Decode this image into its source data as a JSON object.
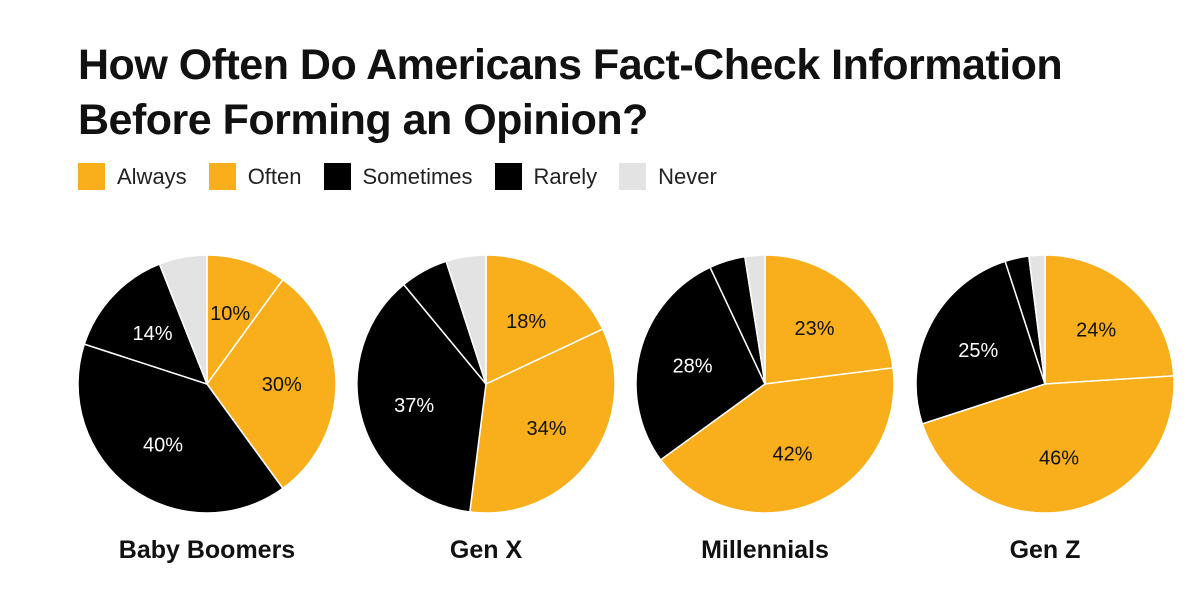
{
  "title_line1": "How Often Do Americans Fact-Check Information",
  "title_line2": "Before Forming an Opinion?",
  "colors": {
    "gold": "#F9AE1B",
    "black": "#000000",
    "light": "#E3E3E3"
  },
  "legend": [
    {
      "label": "Always",
      "color": "#F9AE1B"
    },
    {
      "label": "Often",
      "color": "#F9AE1B"
    },
    {
      "label": "Sometimes",
      "color": "#000000"
    },
    {
      "label": "Rarely",
      "color": "#000000"
    },
    {
      "label": "Never",
      "color": "#E3E3E3"
    }
  ],
  "chart_data": {
    "type": "pie",
    "categories": [
      "Always",
      "Often",
      "Sometimes",
      "Rarely",
      "Never"
    ],
    "series": [
      {
        "name": "Baby Boomers",
        "values": [
          10,
          30,
          40,
          14,
          6
        ],
        "labels": [
          "10%",
          "30%",
          "40%",
          "14%",
          ""
        ]
      },
      {
        "name": "Gen X",
        "values": [
          18,
          34,
          37,
          6,
          5
        ],
        "labels": [
          "18%",
          "34%",
          "37%",
          "",
          ""
        ]
      },
      {
        "name": "Millennials",
        "values": [
          23,
          42,
          28,
          4.5,
          2.5
        ],
        "labels": [
          "23%",
          "42%",
          "28%",
          "",
          ""
        ]
      },
      {
        "name": "Gen Z",
        "values": [
          24,
          46,
          25,
          3,
          2
        ],
        "labels": [
          "24%",
          "46%",
          "25%",
          "",
          ""
        ]
      }
    ]
  }
}
